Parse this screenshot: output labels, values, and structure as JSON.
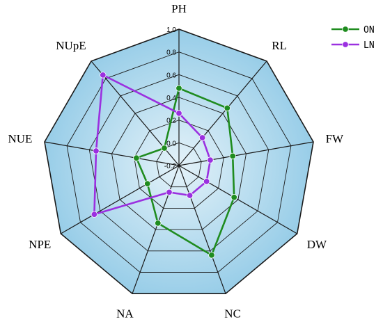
{
  "chart_data": {
    "type": "radar",
    "axes": [
      "PH",
      "RL",
      "FW",
      "DW",
      "NC",
      "NA",
      "NPE",
      "NUE",
      "NUpE"
    ],
    "ticks": [
      "-0.2",
      "0.0",
      "0.2",
      "0.4",
      "0.6",
      "0.8",
      "1.0"
    ],
    "rlim": [
      -0.2,
      1.0
    ],
    "grid": true,
    "legend_position": "top-right",
    "colors": {
      "grid_line": "#1a1a1a",
      "background_light": "#e4f2f9",
      "background_dark": "#8fc9e6"
    },
    "series": [
      {
        "name": "ON",
        "color": "#1f8c1f",
        "values": [
          0.48,
          0.46,
          0.28,
          0.36,
          0.64,
          0.34,
          0.12,
          0.18,
          0.0
        ]
      },
      {
        "name": "LN",
        "color": "#9b30e0",
        "values": [
          0.26,
          0.12,
          0.08,
          0.08,
          0.08,
          0.05,
          0.66,
          0.54,
          0.84
        ]
      }
    ]
  }
}
